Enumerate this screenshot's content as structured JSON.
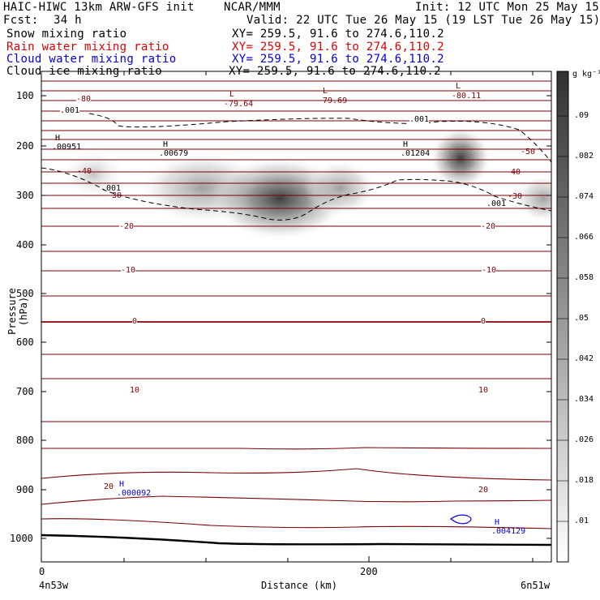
{
  "header": {
    "line1_left": "HAIC-HIWC 13km ARW-GFS init",
    "line1_mid": "NCAR/MMM",
    "line1_right": "Init: 12 UTC Mon 25 May 15",
    "line2_left": "Fcst:",
    "line2_fcst": "34 h",
    "line2_right": "Valid: 22 UTC Tue 26 May 15 (19 LST Tue 26 May 15)"
  },
  "fields": [
    {
      "label": "Snow mixing ratio",
      "xy": "XY= 259.5, 91.6 to 274.6,110.2",
      "color": "#000000"
    },
    {
      "label": "Rain water mixing ratio",
      "xy": "XY= 259.5, 91.6 to 274.6,110.2",
      "color": "#e00000"
    },
    {
      "label": "Cloud water mixing ratio",
      "xy": "XY= 259.5, 91.6 to 274.6,110.2",
      "color": "#0000e0"
    },
    {
      "label": "Cloud ice mixing ratio",
      "xy": "XY= 259.5, 91.6 to 274.6,110.2",
      "color": "#000000"
    }
  ],
  "axes": {
    "ylabel": "Pressure (hPa)",
    "xlabel": "Distance (km)",
    "y_ticks": [
      "100",
      "200",
      "300",
      "400",
      "500",
      "600",
      "700",
      "800",
      "900",
      "1000"
    ],
    "x_ticks": [
      "0",
      "200"
    ],
    "left_point": "4n53w",
    "right_point": "6n51w"
  },
  "colorbar": {
    "unit": "g kg⁻¹",
    "labels": [
      ".09",
      ".082",
      ".074",
      ".066",
      ".058",
      ".05",
      ".042",
      ".034",
      ".026",
      ".018",
      ".01"
    ]
  },
  "annotations": {
    "temps": [
      "-80",
      "-40",
      "-30",
      "-20",
      "-10",
      "0",
      "10",
      "20",
      "-20",
      "-10",
      "0",
      "10",
      "20",
      "-40",
      "-30",
      "-50",
      "-79.64",
      "-79.69",
      "-80.11"
    ],
    "hi_lo": [
      "L",
      "L",
      "L",
      "H",
      "H",
      "H",
      "H",
      "H"
    ],
    "values": [
      ".00951",
      ".00679",
      ".01204",
      ".000092",
      ".004129",
      ".001",
      ".001",
      ".001",
      ".001"
    ]
  }
}
